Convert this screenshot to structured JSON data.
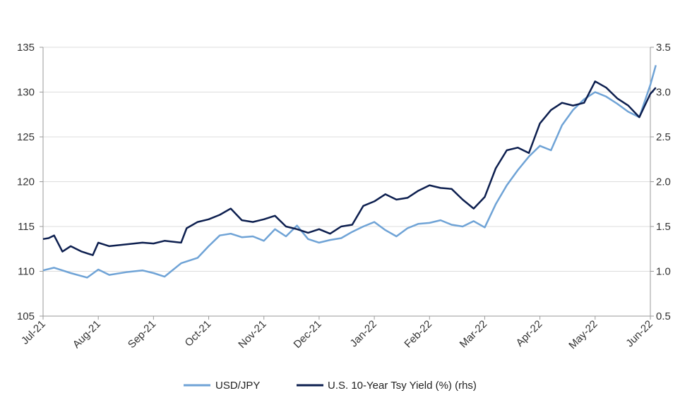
{
  "chart_data": {
    "type": "line",
    "title": "",
    "xlabel": "",
    "ylabel": "",
    "y2label": "",
    "ylim": [
      105,
      135
    ],
    "y2lim": [
      0.5,
      3.5
    ],
    "yticks": [
      "105",
      "110",
      "115",
      "120",
      "125",
      "130",
      "135"
    ],
    "y2ticks": [
      "0.5",
      "1.0",
      "1.5",
      "2.0",
      "2.5",
      "3.0",
      "3.5"
    ],
    "x_categories": [
      "Jul-21",
      "Aug-21",
      "Sep-21",
      "Oct-21",
      "Nov-21",
      "Dec-21",
      "Jan-22",
      "Feb-22",
      "Mar-22",
      "Apr-22",
      "May-22",
      "Jun-22"
    ],
    "grid": "horizontal",
    "legend_position": "bottom",
    "series": [
      {
        "name": "USD/JPY",
        "axis": "left",
        "color": "#6fa3d6",
        "x": [
          0,
          0.2,
          0.5,
          0.8,
          1.0,
          1.2,
          1.5,
          1.8,
          2.0,
          2.2,
          2.5,
          2.8,
          3.0,
          3.2,
          3.4,
          3.6,
          3.8,
          4.0,
          4.2,
          4.4,
          4.6,
          4.8,
          5.0,
          5.2,
          5.4,
          5.6,
          5.8,
          6.0,
          6.2,
          6.4,
          6.6,
          6.8,
          7.0,
          7.2,
          7.4,
          7.6,
          7.8,
          8.0,
          8.2,
          8.4,
          8.6,
          8.8,
          9.0,
          9.2,
          9.4,
          9.6,
          9.8,
          10.0,
          10.2,
          10.4,
          10.6,
          10.8,
          11.0,
          11.1
        ],
        "values": [
          110.1,
          110.4,
          109.8,
          109.3,
          110.2,
          109.6,
          109.9,
          110.1,
          109.8,
          109.4,
          110.9,
          111.5,
          112.8,
          114.0,
          114.2,
          113.8,
          113.9,
          113.4,
          114.7,
          113.9,
          115.1,
          113.6,
          113.2,
          113.5,
          113.7,
          114.4,
          115.0,
          115.5,
          114.6,
          113.9,
          114.8,
          115.3,
          115.4,
          115.7,
          115.2,
          115.0,
          115.6,
          114.9,
          117.5,
          119.6,
          121.3,
          122.8,
          124.0,
          123.5,
          126.3,
          128.0,
          129.2,
          130.0,
          129.5,
          128.7,
          127.8,
          127.2,
          130.8,
          133.0
        ]
      },
      {
        "name": "U.S. 10-Year Tsy Yield (%) (rhs)",
        "axis": "right",
        "color": "#0d1f4f",
        "x": [
          0,
          0.1,
          0.2,
          0.35,
          0.5,
          0.7,
          0.9,
          1.0,
          1.2,
          1.5,
          1.8,
          2.0,
          2.2,
          2.5,
          2.6,
          2.8,
          3.0,
          3.2,
          3.4,
          3.6,
          3.8,
          4.0,
          4.2,
          4.4,
          4.6,
          4.8,
          5.0,
          5.2,
          5.4,
          5.6,
          5.8,
          6.0,
          6.2,
          6.4,
          6.6,
          6.8,
          7.0,
          7.2,
          7.4,
          7.6,
          7.8,
          8.0,
          8.2,
          8.4,
          8.6,
          8.8,
          9.0,
          9.2,
          9.4,
          9.6,
          9.8,
          10.0,
          10.2,
          10.4,
          10.6,
          10.8,
          11.0,
          11.1
        ],
        "values": [
          1.36,
          1.37,
          1.4,
          1.22,
          1.28,
          1.22,
          1.18,
          1.32,
          1.28,
          1.3,
          1.32,
          1.31,
          1.34,
          1.32,
          1.48,
          1.55,
          1.58,
          1.63,
          1.7,
          1.57,
          1.55,
          1.58,
          1.62,
          1.5,
          1.47,
          1.43,
          1.47,
          1.42,
          1.5,
          1.52,
          1.73,
          1.78,
          1.86,
          1.8,
          1.82,
          1.9,
          1.96,
          1.93,
          1.92,
          1.8,
          1.7,
          1.83,
          2.15,
          2.35,
          2.38,
          2.32,
          2.65,
          2.8,
          2.88,
          2.85,
          2.88,
          3.12,
          3.05,
          2.93,
          2.85,
          2.72,
          2.98,
          3.05
        ]
      }
    ]
  }
}
